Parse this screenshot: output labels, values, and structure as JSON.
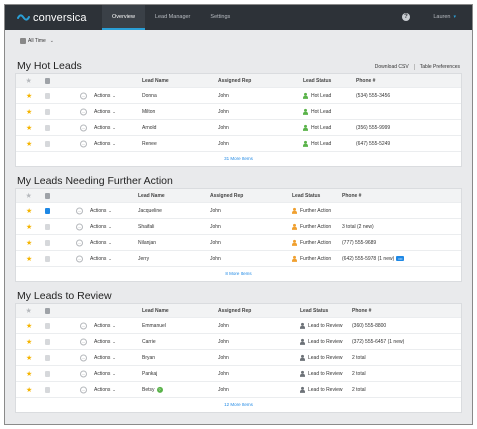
{
  "app": {
    "logo_text": "conversica",
    "nav": [
      {
        "label": "Overview",
        "active": true
      },
      {
        "label": "Lead Manager",
        "active": false
      },
      {
        "label": "Settings",
        "active": false
      }
    ],
    "help_label": "?",
    "user_name": "Lauren",
    "accent_color": "#2a9fd6"
  },
  "filter": {
    "label": "All Time"
  },
  "hot_leads": {
    "title": "My Hot Leads",
    "tools": [
      "Download CSV",
      "Table Preferences"
    ],
    "columns": {
      "lead": "Lead Name",
      "rep": "Assigned Rep",
      "status": "Lead Status",
      "phone": "Phone #"
    },
    "rows": [
      {
        "actions": "Actions",
        "lead": "Donna",
        "rep": "John",
        "status": "Hot Lead",
        "phone": "(534) 555-3456"
      },
      {
        "actions": "Actions",
        "lead": "Milton",
        "rep": "John",
        "status": "Hot Lead",
        "phone": ""
      },
      {
        "actions": "Actions",
        "lead": "Arnold",
        "rep": "John",
        "status": "Hot Lead",
        "phone": "(356) 555-9999"
      },
      {
        "actions": "Actions",
        "lead": "Renee",
        "rep": "John",
        "status": "Hot Lead",
        "phone": "(647) 555-5249"
      }
    ],
    "more": "31 More Items",
    "status_color": "#5ab34a"
  },
  "further_action": {
    "title": "My Leads Needing Further Action",
    "columns": {
      "lead": "Lead Name",
      "rep": "Assigned Rep",
      "status": "Lead Status",
      "phone": "Phone #"
    },
    "rows": [
      {
        "actions": "Actions",
        "lead": "Jacqueline",
        "rep": "John",
        "status": "Further Action",
        "phone": ""
      },
      {
        "actions": "Actions",
        "lead": "Shaifali",
        "rep": "John",
        "status": "Further Action",
        "phone": "3 total (2 new)"
      },
      {
        "actions": "Actions",
        "lead": "Nilanjan",
        "rep": "John",
        "status": "Further Action",
        "phone": "(777) 555-9689"
      },
      {
        "actions": "Actions",
        "lead": "Jerry",
        "rep": "John",
        "status": "Further Action",
        "phone": "(642) 555-5978 (1 new)",
        "badge": "•••"
      }
    ],
    "more": "8 More Items",
    "status_color": "#f0a030"
  },
  "to_review": {
    "title": "My Leads to Review",
    "columns": {
      "lead": "Lead Name",
      "rep": "Assigned Rep",
      "status": "Lead Status",
      "phone": "Phone #"
    },
    "rows": [
      {
        "actions": "Actions",
        "lead": "Emmanuel",
        "rep": "John",
        "status": "Lead to Review",
        "phone": "(360) 555-8800"
      },
      {
        "actions": "Actions",
        "lead": "Carrie",
        "rep": "John",
        "status": "Lead to Review",
        "phone": "(372) 555-6457 (1 new)"
      },
      {
        "actions": "Actions",
        "lead": "Bryan",
        "rep": "John",
        "status": "Lead to Review",
        "phone": "2 total"
      },
      {
        "actions": "Actions",
        "lead": "Pankaj",
        "rep": "John",
        "status": "Lead to Review",
        "phone": "2 total"
      },
      {
        "actions": "Actions",
        "lead": "Betsy",
        "rep": "John",
        "status": "Lead to Review",
        "phone": "2 total",
        "badge": "?"
      }
    ],
    "more": "12 More Items",
    "status_color": "#6d7278"
  }
}
